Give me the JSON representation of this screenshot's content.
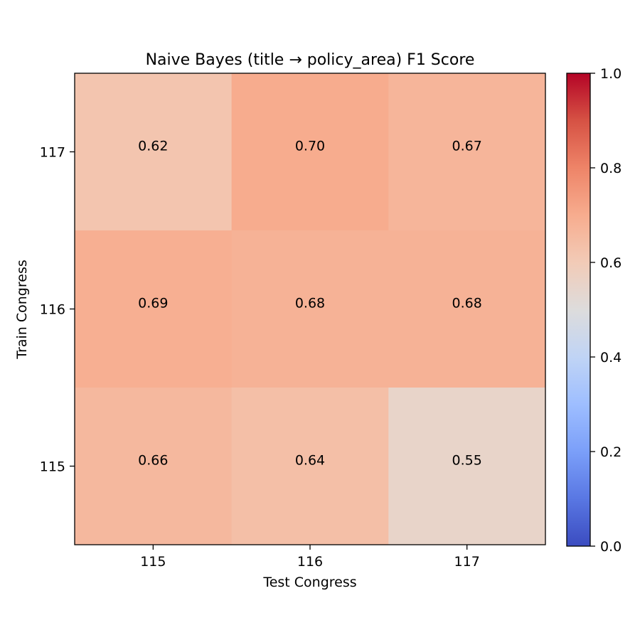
{
  "chart_data": {
    "type": "heatmap",
    "title": "Naive Bayes (title → policy_area) F1 Score",
    "xlabel": "Test Congress",
    "ylabel": "Train Congress",
    "x_categories": [
      "115",
      "116",
      "117"
    ],
    "y_categories": [
      "117",
      "116",
      "115"
    ],
    "values": [
      [
        0.62,
        0.7,
        0.67
      ],
      [
        0.69,
        0.68,
        0.68
      ],
      [
        0.66,
        0.64,
        0.55
      ]
    ],
    "value_labels": [
      [
        "0.62",
        "0.70",
        "0.67"
      ],
      [
        "0.69",
        "0.68",
        "0.68"
      ],
      [
        "0.66",
        "0.64",
        "0.55"
      ]
    ],
    "colorscale": "coolwarm",
    "vmin": 0.0,
    "vmax": 1.0,
    "colorbar_ticks": [
      "0.0",
      "0.2",
      "0.4",
      "0.6",
      "0.8",
      "1.0"
    ]
  }
}
